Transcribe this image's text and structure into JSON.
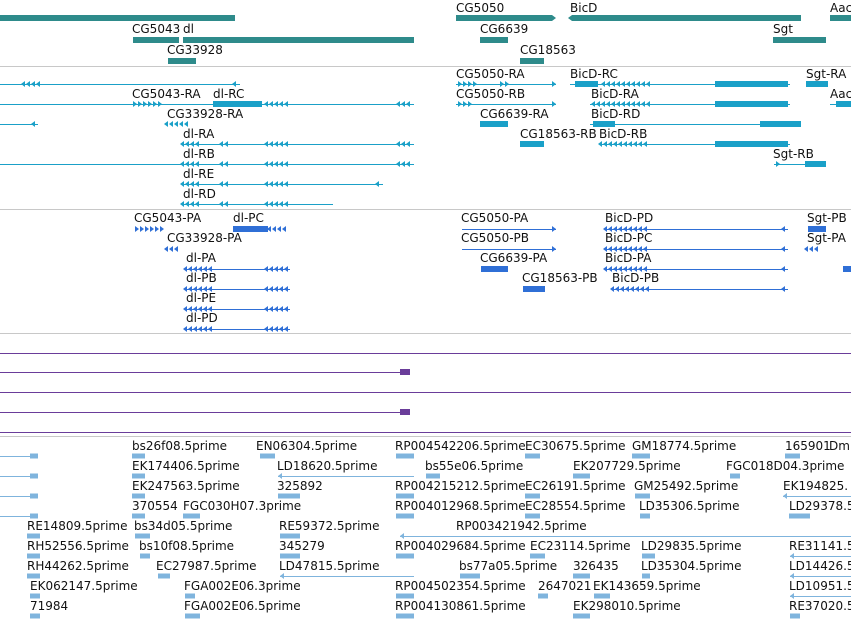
{
  "colors": {
    "gene": "#2e8b8b",
    "transcript": "#1aa0c8",
    "protein": "#2f6fd6",
    "repeat": "#6a3d9a",
    "est": "#7fb4dd",
    "divider": "#c8c8c8"
  },
  "gene_track": {
    "features": [
      {
        "name": "CG5050"
      },
      {
        "name": "BicD"
      },
      {
        "name": "Aac"
      },
      {
        "name": "CG5043"
      },
      {
        "name": "dl"
      },
      {
        "name": "CG6639"
      },
      {
        "name": "Sgt"
      },
      {
        "name": "CG33928"
      },
      {
        "name": "CG18563"
      }
    ]
  },
  "transcript_track": {
    "features": [
      {
        "name": "CG5050-RA"
      },
      {
        "name": "BicD-RC"
      },
      {
        "name": "Sgt-RA"
      },
      {
        "name": "CG5043-RA"
      },
      {
        "name": "dl-RC"
      },
      {
        "name": "CG5050-RB"
      },
      {
        "name": "BicD-RA"
      },
      {
        "name": "Aac"
      },
      {
        "name": "CG33928-RA"
      },
      {
        "name": "CG6639-RA"
      },
      {
        "name": "BicD-RD"
      },
      {
        "name": "dl-RA"
      },
      {
        "name": "CG18563-RB"
      },
      {
        "name": "BicD-RB"
      },
      {
        "name": "dl-RB"
      },
      {
        "name": "Sgt-RB"
      },
      {
        "name": "dl-RE"
      },
      {
        "name": "dl-RD"
      }
    ]
  },
  "protein_track": {
    "features": [
      {
        "name": "CG5043-PA"
      },
      {
        "name": "dl-PC"
      },
      {
        "name": "CG5050-PA"
      },
      {
        "name": "BicD-PD"
      },
      {
        "name": "Sgt-PB"
      },
      {
        "name": "CG33928-PA"
      },
      {
        "name": "CG5050-PB"
      },
      {
        "name": "BicD-PC"
      },
      {
        "name": "Sgt-PA"
      },
      {
        "name": "dl-PA"
      },
      {
        "name": "CG6639-PA"
      },
      {
        "name": "BicD-PA"
      },
      {
        "name": "dl-PB"
      },
      {
        "name": "CG18563-PB"
      },
      {
        "name": "BicD-PB"
      },
      {
        "name": "dl-PE"
      },
      {
        "name": "dl-PD"
      }
    ]
  },
  "est_track": {
    "features": [
      {
        "name": "bs26f08.5prime"
      },
      {
        "name": "EN06304.5prime"
      },
      {
        "name": "RP004542206.5prime"
      },
      {
        "name": "EC30675.5prime"
      },
      {
        "name": "GM18774.5prime"
      },
      {
        "name": "165901"
      },
      {
        "name": "Dm"
      },
      {
        "name": "EK174406.5prime"
      },
      {
        "name": "LD18620.5prime"
      },
      {
        "name": "bs55e06.5prime"
      },
      {
        "name": "EK207729.5prime"
      },
      {
        "name": "FGC018D04.3prime"
      },
      {
        "name": "EK247563.5prime"
      },
      {
        "name": "325892"
      },
      {
        "name": "RP004215212.5prime"
      },
      {
        "name": "EC26191.5prime"
      },
      {
        "name": "GM25492.5prime"
      },
      {
        "name": "EK194825."
      },
      {
        "name": "370554"
      },
      {
        "name": "FGC030H07.3prime"
      },
      {
        "name": "RP004012968.5prime"
      },
      {
        "name": "EC28554.5prime"
      },
      {
        "name": "LD35306.5prime"
      },
      {
        "name": "LD29378.5"
      },
      {
        "name": "RE14809.5prime"
      },
      {
        "name": "bs34d05.5prime"
      },
      {
        "name": "RE59372.5prime"
      },
      {
        "name": "RP003421942.5prime"
      },
      {
        "name": "RH52556.5prime"
      },
      {
        "name": "bs10f08.5prime"
      },
      {
        "name": "345279"
      },
      {
        "name": "RP004029684.5prime"
      },
      {
        "name": "EC23114.5prime"
      },
      {
        "name": "LD29835.5prime"
      },
      {
        "name": "RE31141.5"
      },
      {
        "name": "RH44262.5prime"
      },
      {
        "name": "EC27987.5prime"
      },
      {
        "name": "LD47815.5prime"
      },
      {
        "name": "bs77a05.5prime"
      },
      {
        "name": "326435"
      },
      {
        "name": "LD35304.5prime"
      },
      {
        "name": "LD14426.5"
      },
      {
        "name": "EK062147.5prime"
      },
      {
        "name": "FGA002E06.3prime"
      },
      {
        "name": "RP004502354.5prime"
      },
      {
        "name": "2647021"
      },
      {
        "name": "EK143659.5prime"
      },
      {
        "name": "LD10951.5"
      },
      {
        "name": "71984"
      },
      {
        "name": "FGA002E06.5prime"
      },
      {
        "name": "RP004130861.5prime"
      },
      {
        "name": "EK298010.5prime"
      },
      {
        "name": "RE37020.5"
      }
    ]
  }
}
